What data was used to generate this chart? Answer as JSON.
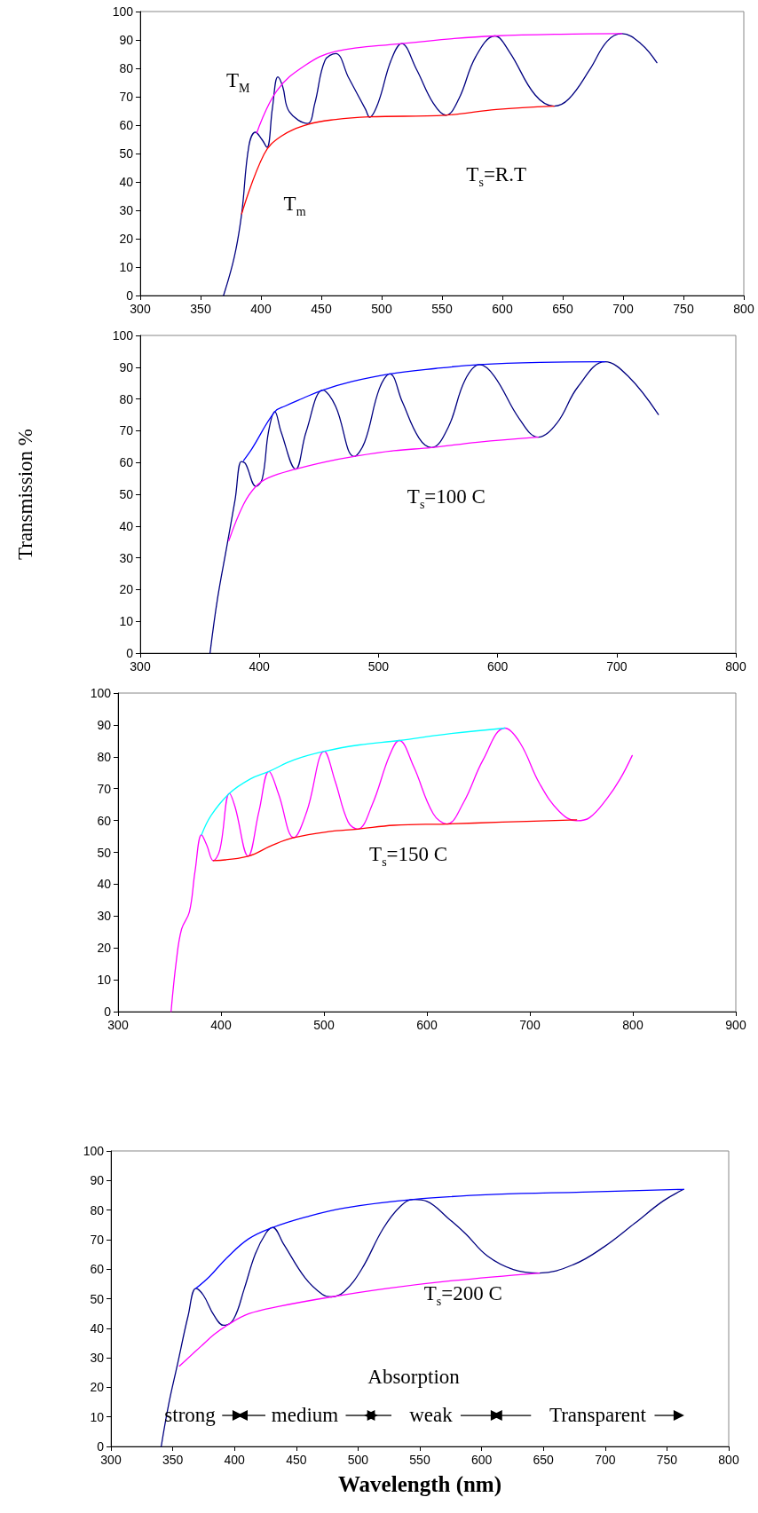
{
  "chart_data": [
    {
      "type": "line",
      "annotations": [
        "T$_{M}$",
        "T$_{m}$",
        "T$_{s}$=R.T"
      ],
      "xlim": [
        300,
        800
      ],
      "xticks": [
        300,
        350,
        400,
        450,
        500,
        550,
        600,
        650,
        700,
        750,
        800
      ],
      "ylim": [
        0,
        100
      ],
      "yticks": [
        0,
        10,
        20,
        30,
        40,
        50,
        60,
        70,
        80,
        90,
        100
      ],
      "grid": false,
      "marker": "none",
      "line_style": "solid",
      "series": [
        {
          "color": "#000080",
          "x": [
            369,
            378,
            384,
            390,
            395.4,
            400.7,
            405,
            409.5,
            414,
            418,
            423.5,
            438.6,
            444.6,
            453,
            462,
            472.6,
            486.7,
            490,
            497,
            507.7,
            516.5,
            528.8,
            542.8,
            553.3,
            563.9,
            578,
            593.7,
            606,
            627,
            642.8,
            655,
            672.6,
            686.7,
            699,
            714.7,
            728
          ],
          "values": [
            0,
            13.7,
            28.7,
            52.7,
            57.5,
            55,
            52.2,
            66,
            77,
            73.6,
            64.7,
            60.6,
            67.6,
            82.7,
            85.2,
            76.7,
            65.5,
            62.8,
            67.7,
            82.7,
            88.7,
            79.7,
            67.7,
            63.5,
            69.2,
            84.2,
            91.4,
            85.7,
            70.7,
            66.7,
            69.2,
            79.7,
            89.5,
            92.2,
            88.7,
            82
          ]
        },
        {
          "color": "#ff00ff",
          "x": [
            396.5,
            413,
            436.5,
            462,
            516.5,
            560,
            593.7,
            648,
            699
          ],
          "values": [
            57.2,
            72,
            81,
            86,
            88.7,
            90.5,
            91.4,
            92,
            92.2
          ]
        },
        {
          "color": "#ff0000",
          "x": [
            384,
            402.5,
            416.5,
            438.6,
            462,
            490,
            553,
            595,
            642.8
          ],
          "values": [
            28.7,
            49.7,
            56,
            60.2,
            62,
            62.9,
            63.5,
            65.5,
            66.7
          ]
        }
      ]
    },
    {
      "type": "line",
      "ylabel": "Transmission %",
      "annotations": [
        "T$_{s}$=100 C"
      ],
      "xlim": [
        300,
        800
      ],
      "xticks": [
        300,
        400,
        500,
        600,
        700,
        800
      ],
      "ylim": [
        0,
        100
      ],
      "yticks": [
        0,
        10,
        20,
        30,
        40,
        50,
        60,
        70,
        80,
        90,
        100
      ],
      "grid": false,
      "marker": "none",
      "line_style": "solid",
      "series": [
        {
          "color": "#000080",
          "x": [
            358.6,
            364.9,
            372.6,
            379.6,
            384.9,
            388.4,
            397.2,
            402.5,
            407.7,
            413,
            418.2,
            430.5,
            439.3,
            453.3,
            463.9,
            479.6,
            488.4,
            500.7,
            509.5,
            520,
            534,
            544.6,
            558.6,
            572.6,
            584.9,
            597.2,
            618.2,
            634,
            649.8,
            667.4,
            690.2,
            709.5,
            735
          ],
          "values": [
            0,
            17.2,
            33.4,
            48.2,
            60.3,
            59.6,
            52.5,
            54.9,
            69.7,
            76,
            69.7,
            57.9,
            69.7,
            82.8,
            77.8,
            61.9,
            66.4,
            83.2,
            87.9,
            79.1,
            67.7,
            64.7,
            71.1,
            85.9,
            90.8,
            87.2,
            73.8,
            68,
            72.4,
            83.8,
            91.7,
            87.2,
            75.1
          ]
        },
        {
          "color": "#0000ff",
          "x": [
            386.7,
            393.7,
            413,
            421.8,
            435.8,
            453.3,
            477.9,
            509.5,
            548,
            584.9,
            635.8,
            690.2
          ],
          "values": [
            60.6,
            64.3,
            76,
            77.8,
            80.1,
            82.8,
            85.5,
            87.9,
            89.6,
            90.8,
            91.5,
            91.7
          ]
        },
        {
          "color": "#ff00ff",
          "x": [
            374.4,
            386.7,
            397.2,
            407.7,
            430.5,
            456.8,
            479.6,
            513,
            544.6,
            583.2,
            634
          ],
          "values": [
            35.4,
            46.8,
            52.5,
            55.2,
            57.9,
            60.3,
            61.9,
            63.7,
            64.7,
            66.4,
            68
          ]
        }
      ]
    },
    {
      "type": "line",
      "annotations": [
        "T$_{s}$=150 C"
      ],
      "xlim": [
        300,
        900
      ],
      "xticks": [
        300,
        400,
        500,
        600,
        700,
        800,
        900
      ],
      "ylim": [
        0,
        100
      ],
      "yticks": [
        0,
        10,
        20,
        30,
        40,
        50,
        60,
        70,
        80,
        90,
        100
      ],
      "grid": false,
      "marker": "none",
      "line_style": "solid",
      "series": [
        {
          "color": "#ff00ff",
          "x": [
            351.5,
            356.6,
            361.7,
            369.3,
            374.8,
            381.1,
            386.2,
            392.5,
            398.9,
            408.2,
            413.7,
            426.3,
            436.9,
            446.6,
            455.9,
            470.7,
            483.4,
            500.3,
            510.9,
            523.5,
            532.8,
            546.8,
            563.7,
            573,
            587,
            606,
            619.5,
            635.5,
            654.5,
            675.6,
            690.4,
            709.4,
            728.4,
            745.4,
            758,
            774.9,
            787.6,
            799.4
          ],
          "values": [
            0,
            15.9,
            25.9,
            31.3,
            44.1,
            55.5,
            52.2,
            47.4,
            50.8,
            68.5,
            64.2,
            48.8,
            62.9,
            75.4,
            68.3,
            54.6,
            62.9,
            81.7,
            72.3,
            59.5,
            57.3,
            64.9,
            80.4,
            85.1,
            77,
            62.2,
            58.9,
            65.6,
            79,
            89,
            84.4,
            71.6,
            62.9,
            59.9,
            60.9,
            66.9,
            73,
            80.4
          ]
        },
        {
          "color": "#00ffff",
          "x": [
            381.1,
            390.4,
            408.2,
            428.4,
            446.6,
            470.7,
            500.3,
            534,
            573,
            618.6,
            675.6
          ],
          "values": [
            55.5,
            61.6,
            68.5,
            73,
            75.4,
            79,
            81.7,
            83.7,
            85.1,
            87.1,
            89
          ]
        },
        {
          "color": "#ff0000",
          "x": [
            392.5,
            426.3,
            449.6,
            470.7,
            504.5,
            532.8,
            567.9,
            619.5,
            673.5,
            745.4
          ],
          "values": [
            47.4,
            48.8,
            52.2,
            54.6,
            56.5,
            57.3,
            58.5,
            58.9,
            59.5,
            60.2
          ]
        }
      ]
    },
    {
      "type": "line",
      "xlabel": "Wavelength (nm)",
      "annotations": [
        "T$_{s}$=200 C",
        "Absorption",
        "strong",
        "medium",
        "weak",
        "Transparent"
      ],
      "xlim": [
        300,
        800
      ],
      "xticks": [
        300,
        350,
        400,
        450,
        500,
        550,
        600,
        650,
        700,
        750,
        800
      ],
      "ylim": [
        0,
        100
      ],
      "yticks": [
        0,
        10,
        20,
        30,
        40,
        50,
        60,
        70,
        80,
        90,
        100
      ],
      "grid": false,
      "marker": "none",
      "line_style": "solid",
      "series": [
        {
          "color": "#000080",
          "x": [
            340.7,
            346.7,
            353.7,
            362.5,
            368.8,
            374.8,
            383.5,
            391.2,
            399.3,
            408,
            416.8,
            425.6,
            430.9,
            439.6,
            457.2,
            471.2,
            478.2,
            488.8,
            502.8,
            520.4,
            534.4,
            544.9,
            555.4,
            573,
            587,
            604.6,
            625.6,
            646.7,
            674.7,
            699.3,
            723.9,
            746.7,
            763.5
          ],
          "values": [
            0,
            14.2,
            27.5,
            44.3,
            53.5,
            51.2,
            44.3,
            41,
            43.1,
            53.5,
            65.1,
            72.3,
            74.1,
            68.6,
            57,
            51.4,
            50.6,
            52.4,
            59.9,
            73.8,
            81.3,
            83.6,
            83,
            77.2,
            72,
            64.5,
            59.9,
            58.7,
            61.6,
            67.6,
            75.5,
            83,
            87
          ]
        },
        {
          "color": "#0000ff",
          "x": [
            368.8,
            380,
            394,
            411.6,
            430.9,
            457.2,
            488.8,
            544.9,
            611.6,
            681.8,
            763.5
          ],
          "values": [
            53.5,
            57.6,
            63.9,
            70.3,
            74.1,
            77.6,
            80.7,
            83.6,
            85.3,
            86.1,
            87
          ]
        },
        {
          "color": "#ff00ff",
          "x": [
            355.4,
            372.9,
            383.5,
            394,
            411.6,
            436.1,
            478.2,
            523.8,
            576.5,
            646.7
          ],
          "values": [
            27.2,
            33.9,
            37.9,
            41,
            44.9,
            47.4,
            50.6,
            53.5,
            56.1,
            58.7
          ]
        }
      ]
    }
  ]
}
